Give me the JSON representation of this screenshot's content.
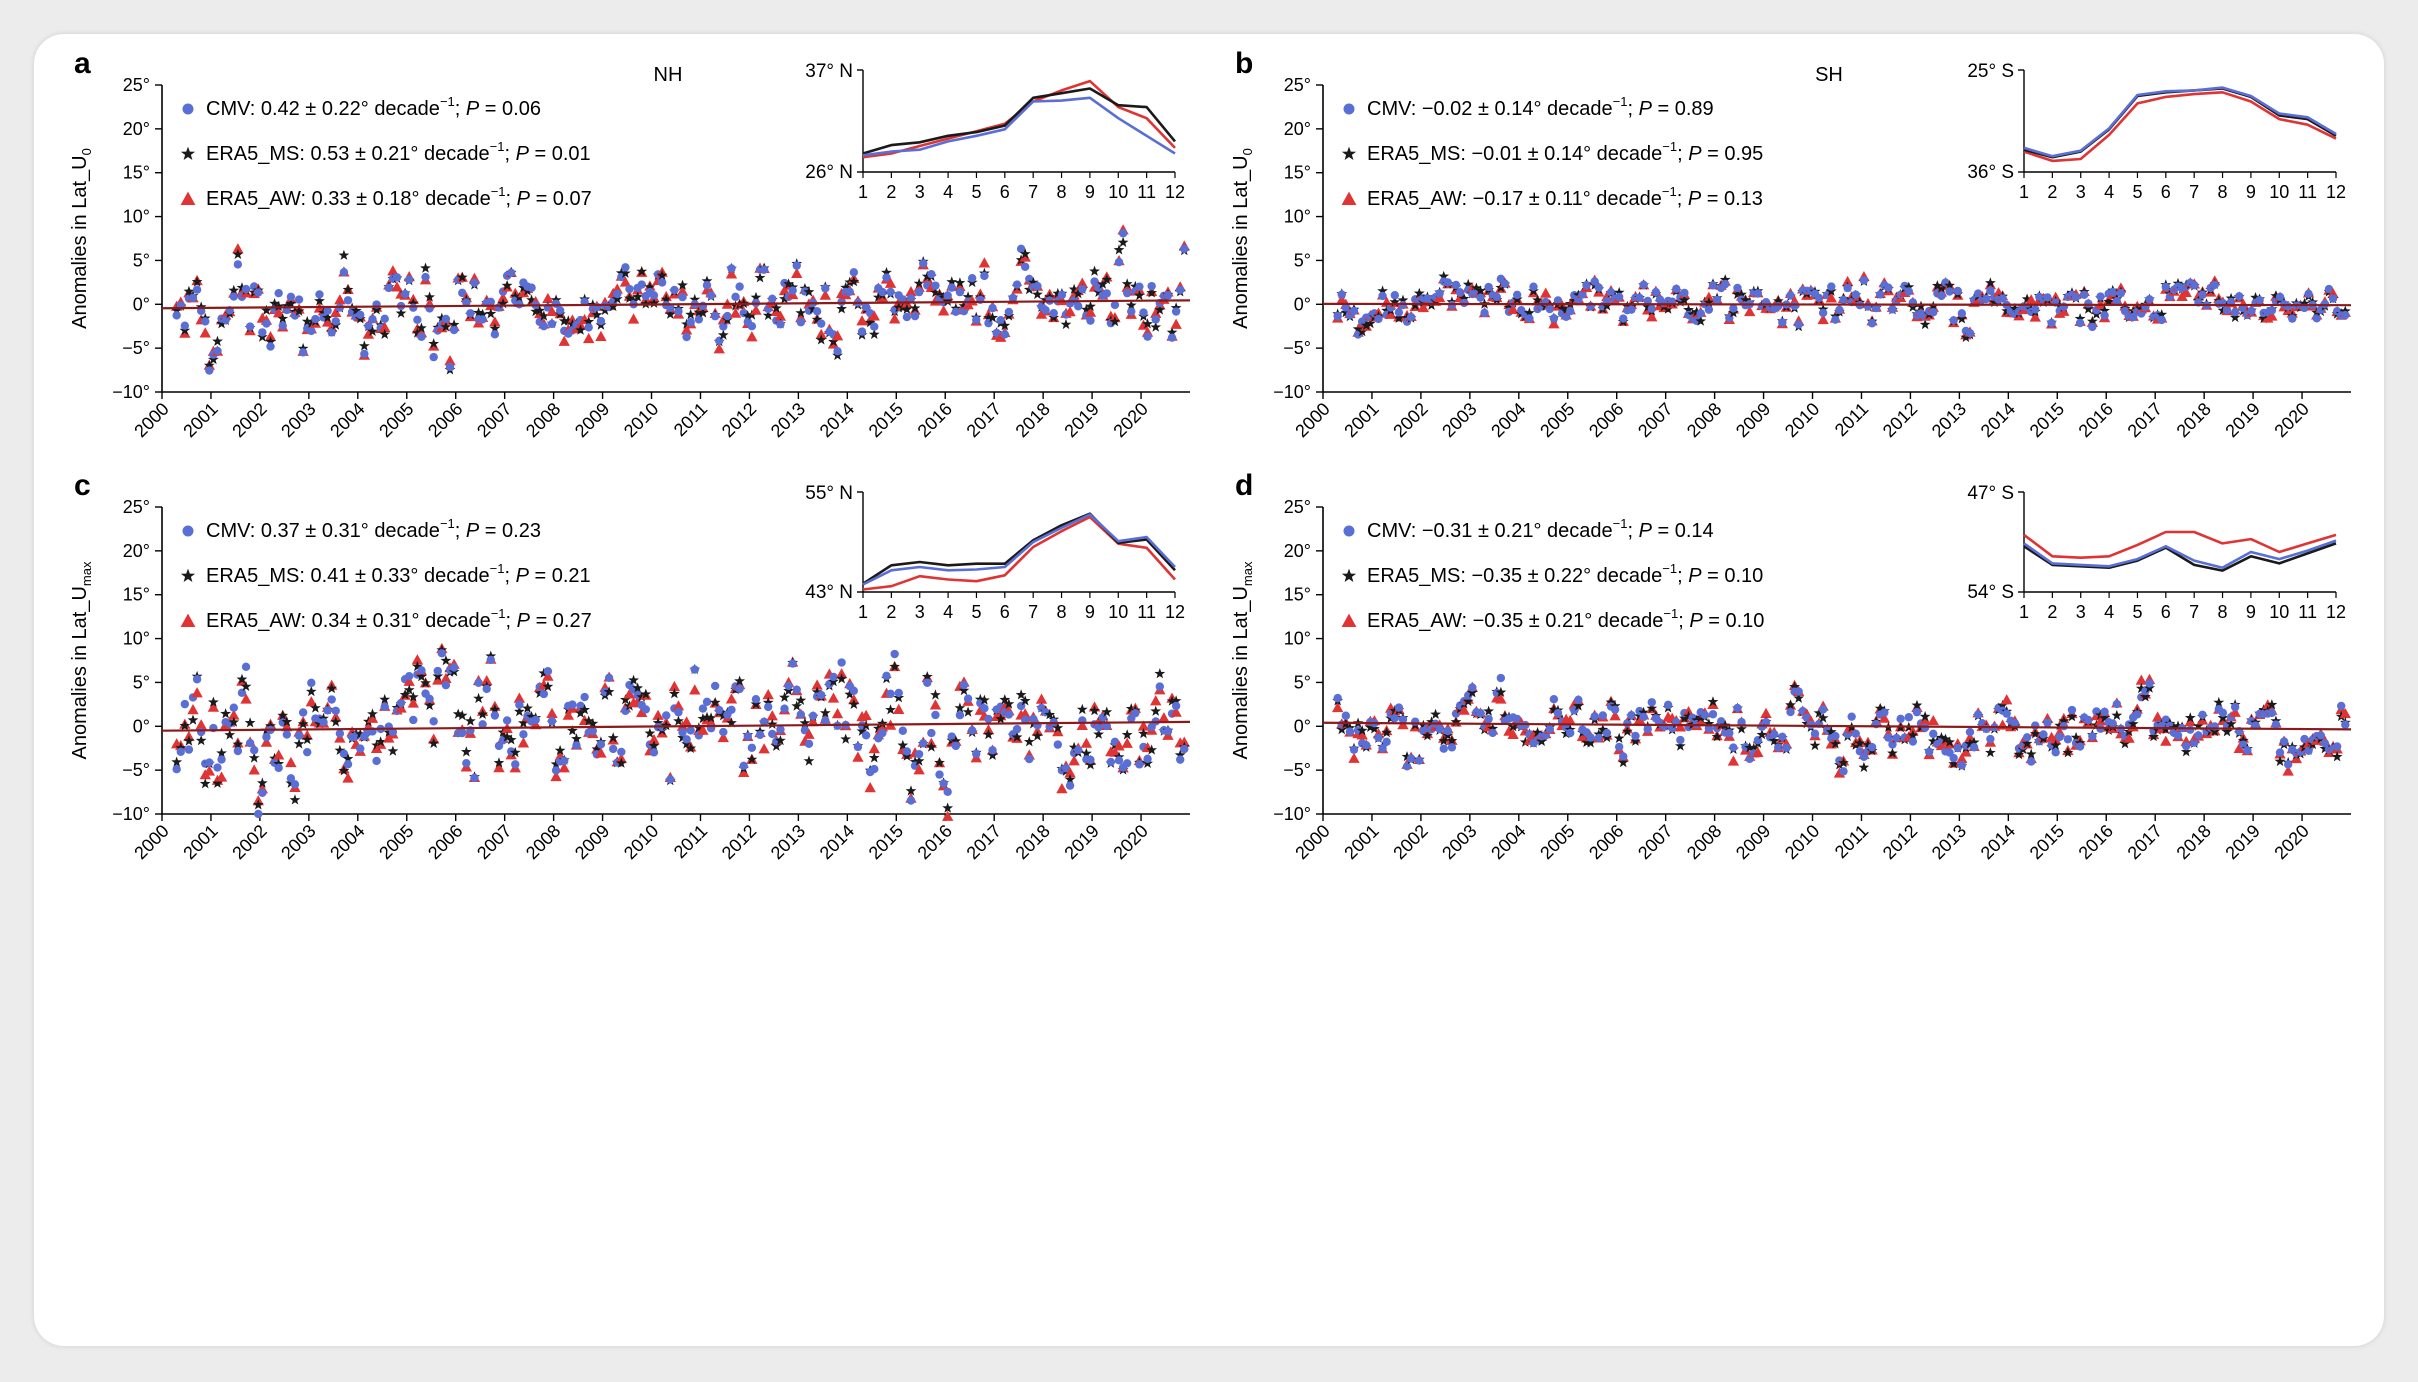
{
  "colors": {
    "CMV": "#5a6fd6",
    "ERA5_MS": "#1a1a1a",
    "ERA5_AW": "#e03434",
    "trend": "#8b1a1a"
  },
  "chart_data": [
    {
      "id": "a",
      "type": "scatter",
      "letter": "a",
      "title": "NH",
      "ylabel_main": "Anomalies in Lat_U",
      "ylabel_sub": "0",
      "ylim": [
        -10,
        25
      ],
      "yticks": [
        "25°",
        "20°",
        "15°",
        "10°",
        "5°",
        "0°",
        "−5°",
        "−10°"
      ],
      "yticks_values": [
        25,
        20,
        15,
        10,
        5,
        0,
        -5,
        -10
      ],
      "xticks": [
        "2000",
        "2001",
        "2002",
        "2003",
        "2004",
        "2005",
        "2006",
        "2007",
        "2008",
        "2009",
        "2010",
        "2011",
        "2012",
        "2013",
        "2014",
        "2015",
        "2016",
        "2017",
        "2018",
        "2019",
        "2020"
      ],
      "xlim": [
        2000,
        2021
      ],
      "trend": [
        [
          2000,
          -0.45
        ],
        [
          2021,
          0.45
        ]
      ],
      "legend": [
        {
          "series": "CMV",
          "marker": "circle",
          "name": "CMV",
          "text": ": 0.42 ± 0.22° decade",
          "sup": "−1",
          "ptext": "; ",
          "p": "P",
          "pval": " = 0.06"
        },
        {
          "series": "ERA5_MS",
          "marker": "star",
          "name": "ERA5_MS",
          "text": ": 0.53 ± 0.21° decade",
          "sup": "−1",
          "ptext": "; ",
          "p": "P",
          "pval": " = 0.01"
        },
        {
          "series": "ERA5_AW",
          "marker": "triangle",
          "name": "ERA5_AW",
          "text": ": 0.33 ± 0.18° decade",
          "sup": "−1",
          "ptext": "; ",
          "p": "P",
          "pval": " = 0.07"
        }
      ],
      "seed": 11,
      "amp": 2.4,
      "trend_slope": 0.042,
      "inset": {
        "ytop": "37° N",
        "ybottom": "26° N",
        "ylim": [
          26,
          37
        ],
        "xticks": [
          "1",
          "2",
          "3",
          "4",
          "5",
          "6",
          "7",
          "8",
          "9",
          "10",
          "11",
          "12"
        ],
        "series": {
          "CMV": [
            27.8,
            28.2,
            28.4,
            29.3,
            29.9,
            30.6,
            33.6,
            33.7,
            34.0,
            31.8,
            29.9,
            28.0
          ],
          "ERA5_MS": [
            28.0,
            28.9,
            29.2,
            29.9,
            30.3,
            31.0,
            34.0,
            34.5,
            35.0,
            33.2,
            33.0,
            29.3
          ],
          "ERA5_AW": [
            27.6,
            28.0,
            28.8,
            29.6,
            30.4,
            31.2,
            33.6,
            34.8,
            35.8,
            33.0,
            31.8,
            28.6
          ]
        }
      }
    },
    {
      "id": "b",
      "type": "scatter",
      "letter": "b",
      "title": "SH",
      "ylabel_main": "Anomalies in Lat_U",
      "ylabel_sub": "0",
      "ylim": [
        -10,
        25
      ],
      "yticks": [
        "25°",
        "20°",
        "15°",
        "10°",
        "5°",
        "0°",
        "−5°",
        "−10°"
      ],
      "yticks_values": [
        25,
        20,
        15,
        10,
        5,
        0,
        -5,
        -10
      ],
      "xticks": [
        "2000",
        "2001",
        "2002",
        "2003",
        "2004",
        "2005",
        "2006",
        "2007",
        "2008",
        "2009",
        "2010",
        "2011",
        "2012",
        "2013",
        "2014",
        "2015",
        "2016",
        "2017",
        "2018",
        "2019",
        "2020"
      ],
      "xlim": [
        2000,
        2021
      ],
      "trend": [
        [
          2000,
          0.05
        ],
        [
          2021,
          -0.1
        ]
      ],
      "legend": [
        {
          "series": "CMV",
          "marker": "circle",
          "name": "CMV",
          "text": ": −0.02 ± 0.14° decade",
          "sup": "−1",
          "ptext": "; ",
          "p": "P",
          "pval": " = 0.89"
        },
        {
          "series": "ERA5_MS",
          "marker": "star",
          "name": "ERA5_MS",
          "text": ": −0.01 ± 0.14° decade",
          "sup": "−1",
          "ptext": "; ",
          "p": "P",
          "pval": " = 0.95"
        },
        {
          "series": "ERA5_AW",
          "marker": "triangle",
          "name": "ERA5_AW",
          "text": ": −0.17 ± 0.11° decade",
          "sup": "−1",
          "ptext": "; ",
          "p": "P",
          "pval": " = 0.13"
        }
      ],
      "seed": 23,
      "amp": 1.3,
      "trend_slope": 0,
      "inset": {
        "ytop": "25° S",
        "ybottom": "36° S",
        "ylim": [
          -36,
          -25
        ],
        "xticks": [
          "1",
          "2",
          "3",
          "4",
          "5",
          "6",
          "7",
          "8",
          "9",
          "10",
          "11",
          "12"
        ],
        "series": {
          "CMV": [
            -33.4,
            -34.3,
            -33.7,
            -31.3,
            -27.7,
            -27.3,
            -27.2,
            -26.9,
            -27.8,
            -29.7,
            -30.1,
            -31.9
          ],
          "ERA5_MS": [
            -33.6,
            -34.4,
            -33.8,
            -31.4,
            -27.8,
            -27.4,
            -27.2,
            -27.0,
            -27.9,
            -29.9,
            -30.3,
            -32.1
          ],
          "ERA5_AW": [
            -33.8,
            -34.8,
            -34.6,
            -32.0,
            -28.6,
            -27.9,
            -27.6,
            -27.4,
            -28.4,
            -30.3,
            -30.9,
            -32.4
          ]
        }
      }
    },
    {
      "id": "c",
      "type": "scatter",
      "letter": "c",
      "title": "",
      "ylabel_main": "Anomalies in Lat_U",
      "ylabel_sub": "max",
      "ylim": [
        -10,
        25
      ],
      "yticks": [
        "25°",
        "20°",
        "15°",
        "10°",
        "5°",
        "0°",
        "−5°",
        "−10°"
      ],
      "yticks_values": [
        25,
        20,
        15,
        10,
        5,
        0,
        -5,
        -10
      ],
      "xticks": [
        "2000",
        "2001",
        "2002",
        "2003",
        "2004",
        "2005",
        "2006",
        "2007",
        "2008",
        "2009",
        "2010",
        "2011",
        "2012",
        "2013",
        "2014",
        "2015",
        "2016",
        "2017",
        "2018",
        "2019",
        "2020"
      ],
      "xlim": [
        2000,
        2021
      ],
      "trend": [
        [
          2000,
          -0.5
        ],
        [
          2021,
          0.5
        ]
      ],
      "legend": [
        {
          "series": "CMV",
          "marker": "circle",
          "name": "CMV",
          "text": ": 0.37 ± 0.31° decade",
          "sup": "−1",
          "ptext": "; ",
          "p": "P",
          "pval": " = 0.23"
        },
        {
          "series": "ERA5_MS",
          "marker": "star",
          "name": "ERA5_MS",
          "text": ": 0.41 ± 0.33° decade",
          "sup": "−1",
          "ptext": "; ",
          "p": "P",
          "pval": " = 0.21"
        },
        {
          "series": "ERA5_AW",
          "marker": "triangle",
          "name": "ERA5_AW",
          "text": ": 0.34 ± 0.31° decade",
          "sup": "−1",
          "ptext": "; ",
          "p": "P",
          "pval": " = 0.27"
        }
      ],
      "seed": 37,
      "amp": 3.4,
      "trend_slope": 0.04,
      "inset": {
        "ytop": "55° N",
        "ybottom": "43° N",
        "ylim": [
          43,
          55
        ],
        "xticks": [
          "1",
          "2",
          "3",
          "4",
          "5",
          "6",
          "7",
          "8",
          "9",
          "10",
          "11",
          "12"
        ],
        "series": {
          "CMV": [
            43.9,
            45.6,
            46.0,
            45.6,
            45.7,
            46.0,
            49.0,
            50.7,
            52.3,
            49.1,
            49.6,
            46.0
          ],
          "ERA5_MS": [
            44.0,
            46.2,
            46.6,
            46.2,
            46.4,
            46.4,
            49.2,
            51.0,
            52.4,
            48.9,
            49.3,
            45.6
          ],
          "ERA5_AW": [
            43.3,
            43.7,
            44.9,
            44.5,
            44.3,
            45.0,
            48.4,
            50.3,
            52.0,
            48.8,
            48.3,
            44.5
          ]
        }
      }
    },
    {
      "id": "d",
      "type": "scatter",
      "letter": "d",
      "title": "",
      "ylabel_main": "Anomalies in Lat_U",
      "ylabel_sub": "max",
      "ylim": [
        -10,
        25
      ],
      "yticks": [
        "25°",
        "20°",
        "15°",
        "10°",
        "5°",
        "0°",
        "−5°",
        "−10°"
      ],
      "yticks_values": [
        25,
        20,
        15,
        10,
        5,
        0,
        -5,
        -10
      ],
      "xticks": [
        "2000",
        "2001",
        "2002",
        "2003",
        "2004",
        "2005",
        "2006",
        "2007",
        "2008",
        "2009",
        "2010",
        "2011",
        "2012",
        "2013",
        "2014",
        "2015",
        "2016",
        "2017",
        "2018",
        "2019",
        "2020"
      ],
      "xlim": [
        2000,
        2021
      ],
      "trend": [
        [
          2000,
          0.4
        ],
        [
          2021,
          -0.35
        ]
      ],
      "legend": [
        {
          "series": "CMV",
          "marker": "circle",
          "name": "CMV",
          "text": ": −0.31 ± 0.21° decade",
          "sup": "−1",
          "ptext": "; ",
          "p": "P",
          "pval": " = 0.14"
        },
        {
          "series": "ERA5_MS",
          "marker": "star",
          "name": "ERA5_MS",
          "text": ": −0.35 ± 0.22° decade",
          "sup": "−1",
          "ptext": "; ",
          "p": "P",
          "pval": " = 0.10"
        },
        {
          "series": "ERA5_AW",
          "marker": "triangle",
          "name": "ERA5_AW",
          "text": ": −0.35 ± 0.21° decade",
          "sup": "−1",
          "ptext": "; ",
          "p": "P",
          "pval": " = 0.10"
        }
      ],
      "seed": 53,
      "amp": 2.1,
      "trend_slope": -0.036,
      "inset": {
        "ytop": "47° S",
        "ybottom": "54° S",
        "ylim": [
          -54,
          -47
        ],
        "xticks": [
          "1",
          "2",
          "3",
          "4",
          "5",
          "6",
          "7",
          "8",
          "9",
          "10",
          "11",
          "12"
        ],
        "series": {
          "CMV": [
            -50.6,
            -52.0,
            -52.1,
            -52.2,
            -51.7,
            -50.8,
            -51.8,
            -52.3,
            -51.2,
            -51.7,
            -51.1,
            -50.4
          ],
          "ERA5_MS": [
            -50.8,
            -52.1,
            -52.2,
            -52.3,
            -51.8,
            -50.9,
            -52.1,
            -52.5,
            -51.5,
            -52.0,
            -51.3,
            -50.6
          ],
          "ERA5_AW": [
            -50.0,
            -51.5,
            -51.6,
            -51.5,
            -50.7,
            -49.8,
            -49.8,
            -50.6,
            -50.3,
            -51.2,
            -50.6,
            -50.0
          ]
        }
      }
    }
  ]
}
